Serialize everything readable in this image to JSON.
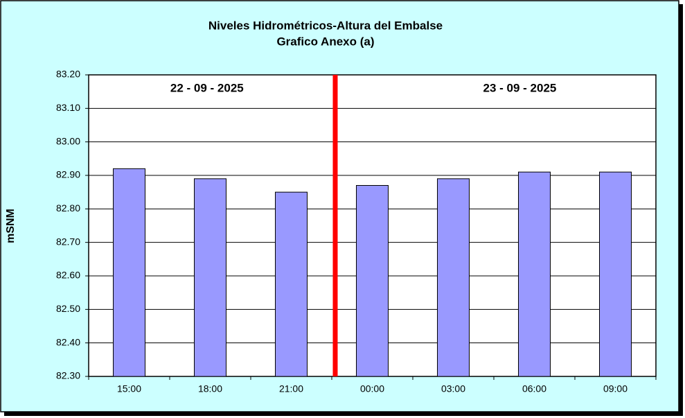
{
  "chart_data": {
    "type": "bar",
    "title": "Niveles Hidrométricos-Altura del Embalse",
    "subtitle": "Grafico Anexo (a)",
    "y_label": "mSNM",
    "annotations": [
      "22 - 09 - 2025",
      "23 - 09 - 2025"
    ],
    "categories": [
      "15:00",
      "18:00",
      "21:00",
      "00:00",
      "03:00",
      "06:00",
      "09:00"
    ],
    "values": [
      82.92,
      82.89,
      82.85,
      82.87,
      82.89,
      82.91,
      82.91
    ],
    "color": "#9999ff",
    "ylim": [
      82.3,
      83.2
    ],
    "yticks": [
      {
        "value": 82.3,
        "label": "82.30"
      },
      {
        "value": 82.4,
        "label": "82.40"
      },
      {
        "value": 82.5,
        "label": "82.50"
      },
      {
        "value": 82.6,
        "label": "82.60"
      },
      {
        "value": 82.7,
        "label": "82.70"
      },
      {
        "value": 82.8,
        "label": "82.80"
      },
      {
        "value": 82.9,
        "label": "82.90"
      },
      {
        "value": 83.0,
        "label": "83.00"
      },
      {
        "value": 83.1,
        "label": "83.10"
      },
      {
        "value": 83.2,
        "label": "83.20"
      }
    ],
    "grid": true
  }
}
